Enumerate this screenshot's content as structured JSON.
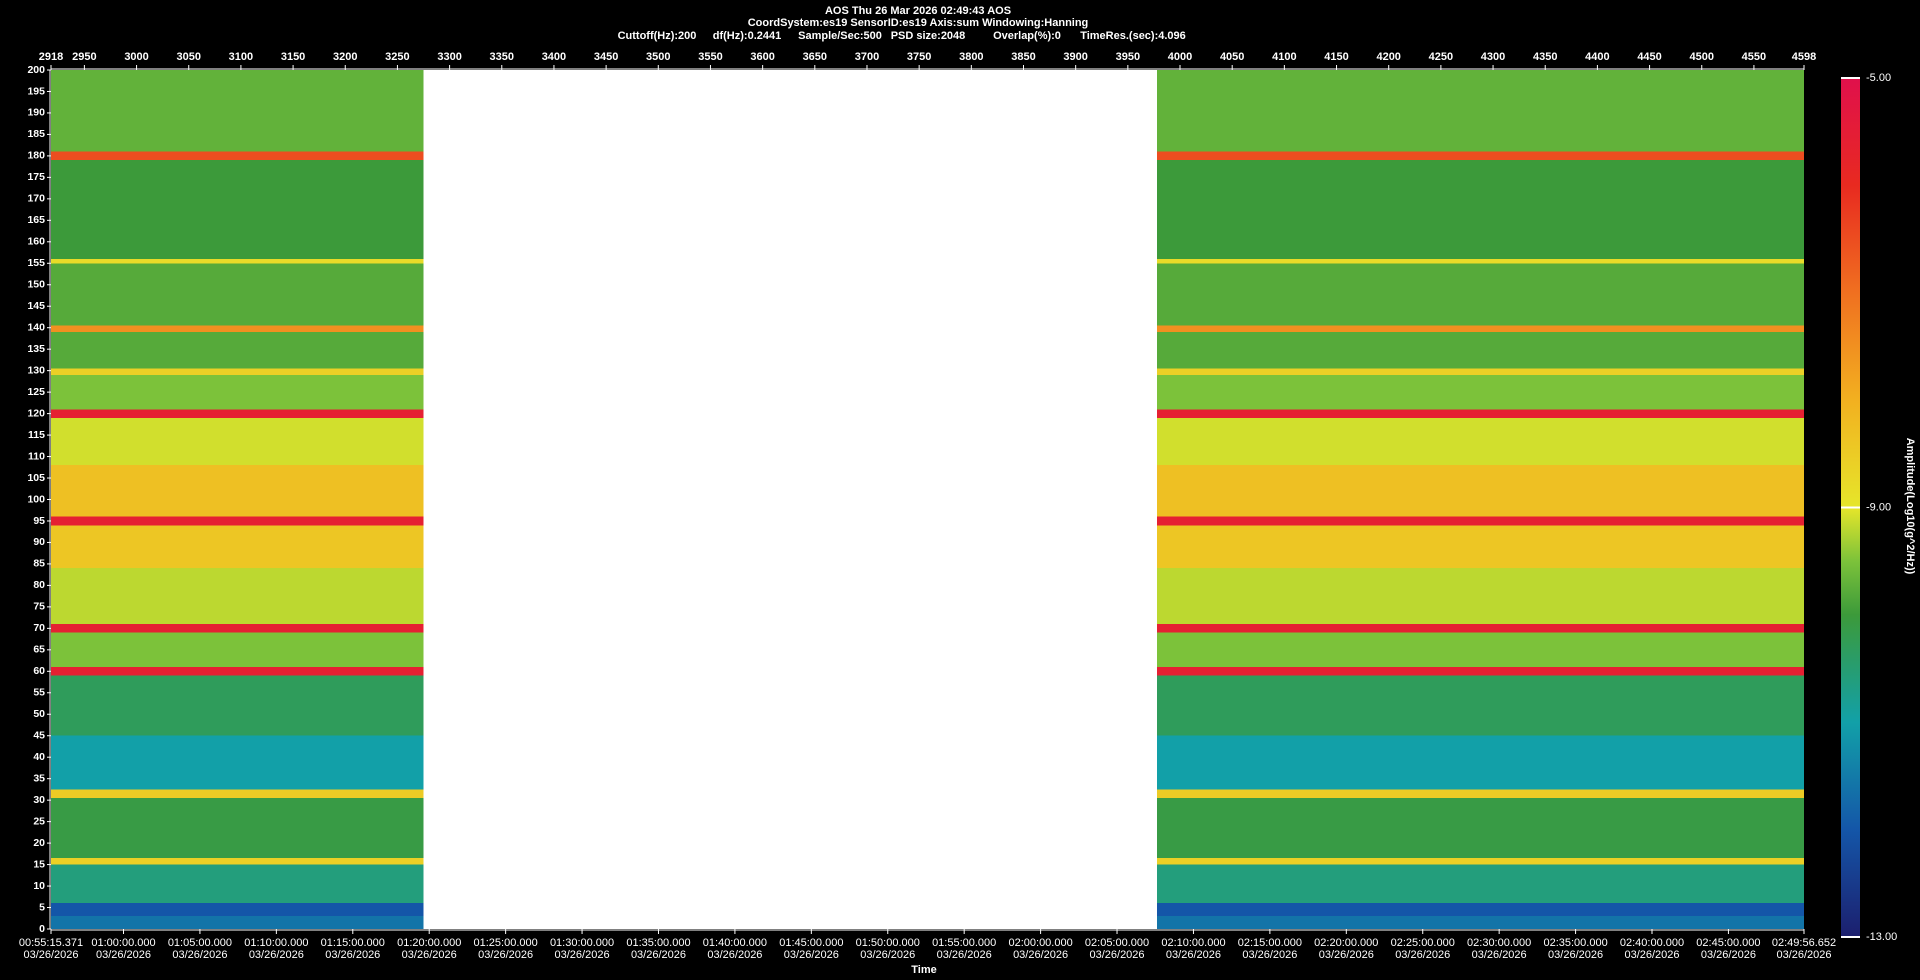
{
  "chart_data": {
    "type": "spectrogram",
    "title": "AOS  Thu 26 Mar 2026 02:49:43  AOS",
    "subtitle": "CoordSystem:es19   SensorID:es19   Axis:sum   Windowing:Hanning",
    "parameters": [
      "Cuttoff(Hz):200",
      "df(Hz):0.2441",
      "Sample/Sec:500",
      "PSD size:2048",
      "Overlap(%):0",
      "TimeRes.(sec):4.096"
    ],
    "x_label": "Time",
    "colorbar_label": "Amplitude(Log10(g^2/Hz))",
    "xlim": [
      2918,
      4598
    ],
    "xticks": [
      2918,
      2950,
      3000,
      3050,
      3100,
      3150,
      3200,
      3250,
      3300,
      3350,
      3400,
      3450,
      3500,
      3550,
      3600,
      3650,
      3700,
      3750,
      3800,
      3850,
      3900,
      3950,
      4000,
      4050,
      4100,
      4150,
      4200,
      4250,
      4300,
      4350,
      4400,
      4450,
      4500,
      4550,
      4598
    ],
    "ylim": [
      0,
      200
    ],
    "yticks": [
      0,
      5,
      10,
      15,
      20,
      25,
      30,
      35,
      40,
      45,
      50,
      55,
      60,
      65,
      70,
      75,
      80,
      85,
      90,
      95,
      100,
      105,
      110,
      115,
      120,
      125,
      130,
      135,
      140,
      145,
      150,
      155,
      160,
      165,
      170,
      175,
      180,
      185,
      190,
      195,
      200
    ],
    "x2lim": [
      3315.371,
      10196.652
    ],
    "x2ticks": [
      {
        "value": 3315.371,
        "label": "00:55:15.371",
        "date": "03/26/2026"
      },
      {
        "value": 3600,
        "label": "01:00:00.000",
        "date": "03/26/2026"
      },
      {
        "value": 3900,
        "label": "01:05:00.000",
        "date": "03/26/2026"
      },
      {
        "value": 4200,
        "label": "01:10:00.000",
        "date": "03/26/2026"
      },
      {
        "value": 4500,
        "label": "01:15:00.000",
        "date": "03/26/2026"
      },
      {
        "value": 4800,
        "label": "01:20:00.000",
        "date": "03/26/2026"
      },
      {
        "value": 5100,
        "label": "01:25:00.000",
        "date": "03/26/2026"
      },
      {
        "value": 5400,
        "label": "01:30:00.000",
        "date": "03/26/2026"
      },
      {
        "value": 5700,
        "label": "01:35:00.000",
        "date": "03/26/2026"
      },
      {
        "value": 6000,
        "label": "01:40:00.000",
        "date": "03/26/2026"
      },
      {
        "value": 6300,
        "label": "01:45:00.000",
        "date": "03/26/2026"
      },
      {
        "value": 6600,
        "label": "01:50:00.000",
        "date": "03/26/2026"
      },
      {
        "value": 6900,
        "label": "01:55:00.000",
        "date": "03/26/2026"
      },
      {
        "value": 7200,
        "label": "02:00:00.000",
        "date": "03/26/2026"
      },
      {
        "value": 7500,
        "label": "02:05:00.000",
        "date": "03/26/2026"
      },
      {
        "value": 7800,
        "label": "02:10:00.000",
        "date": "03/26/2026"
      },
      {
        "value": 8100,
        "label": "02:15:00.000",
        "date": "03/26/2026"
      },
      {
        "value": 8400,
        "label": "02:20:00.000",
        "date": "03/26/2026"
      },
      {
        "value": 8700,
        "label": "02:25:00.000",
        "date": "03/26/2026"
      },
      {
        "value": 9000,
        "label": "02:30:00.000",
        "date": "03/26/2026"
      },
      {
        "value": 9300,
        "label": "02:35:00.000",
        "date": "03/26/2026"
      },
      {
        "value": 9600,
        "label": "02:40:00.000",
        "date": "03/26/2026"
      },
      {
        "value": 9900,
        "label": "02:45:00.000",
        "date": "03/26/2026"
      },
      {
        "value": 10196.652,
        "label": "02:49:56.652",
        "date": "03/26/2026"
      }
    ],
    "zlim": [
      -13,
      -5
    ],
    "zticks": [
      {
        "value": -5,
        "label": "-5.00"
      },
      {
        "value": -9,
        "label": "-9.00"
      },
      {
        "value": -13,
        "label": "-13.00"
      }
    ],
    "colormap": [
      {
        "value": -13,
        "color": "#1c1f6e"
      },
      {
        "value": -12,
        "color": "#1456a8"
      },
      {
        "value": -11,
        "color": "#12a0a8"
      },
      {
        "value": -10,
        "color": "#3c9a3a"
      },
      {
        "value": -9.5,
        "color": "#7cc23a"
      },
      {
        "value": -9,
        "color": "#e6e62a"
      },
      {
        "value": -8,
        "color": "#f2b020"
      },
      {
        "value": -7,
        "color": "#f07020"
      },
      {
        "value": -6,
        "color": "#e82a20"
      },
      {
        "value": -5,
        "color": "#e0104c"
      }
    ],
    "segments": [
      {
        "x0": 2918,
        "x1": 3275
      },
      {
        "x0": 3978,
        "x1": 4598
      }
    ],
    "bands": [
      {
        "f0": 0,
        "f1": 3,
        "z": -11.6
      },
      {
        "f0": 3,
        "f1": 6,
        "z": -12
      },
      {
        "f0": 6,
        "f1": 15,
        "z": -10.6
      },
      {
        "f0": 15,
        "f1": 16.5,
        "z": -8.6
      },
      {
        "f0": 16.5,
        "f1": 30.5,
        "z": -10.1
      },
      {
        "f0": 30.5,
        "f1": 32.5,
        "z": -8.5
      },
      {
        "f0": 32.5,
        "f1": 45,
        "z": -11
      },
      {
        "f0": 45,
        "f1": 59,
        "z": -10.3
      },
      {
        "f0": 59,
        "f1": 61,
        "z": -5.6
      },
      {
        "f0": 61,
        "f1": 69,
        "z": -9.5
      },
      {
        "f0": 69,
        "f1": 71,
        "z": -5.6
      },
      {
        "f0": 71,
        "f1": 84,
        "z": -9.2
      },
      {
        "f0": 84,
        "f1": 94,
        "z": -8.4
      },
      {
        "f0": 94,
        "f1": 96,
        "z": -5.6
      },
      {
        "f0": 96,
        "f1": 108,
        "z": -8.3
      },
      {
        "f0": 108,
        "f1": 119,
        "z": -9.1
      },
      {
        "f0": 119,
        "f1": 121,
        "z": -5.6
      },
      {
        "f0": 121,
        "f1": 129,
        "z": -9.5
      },
      {
        "f0": 129,
        "f1": 130.5,
        "z": -8.6
      },
      {
        "f0": 130.5,
        "f1": 139,
        "z": -9.8
      },
      {
        "f0": 139,
        "f1": 140.5,
        "z": -7.5
      },
      {
        "f0": 140.5,
        "f1": 155,
        "z": -9.8
      },
      {
        "f0": 155,
        "f1": 156,
        "z": -8.8
      },
      {
        "f0": 156,
        "f1": 179,
        "z": -10
      },
      {
        "f0": 179,
        "f1": 181,
        "z": -6.5
      },
      {
        "f0": 181,
        "f1": 200,
        "z": -9.7
      }
    ]
  }
}
